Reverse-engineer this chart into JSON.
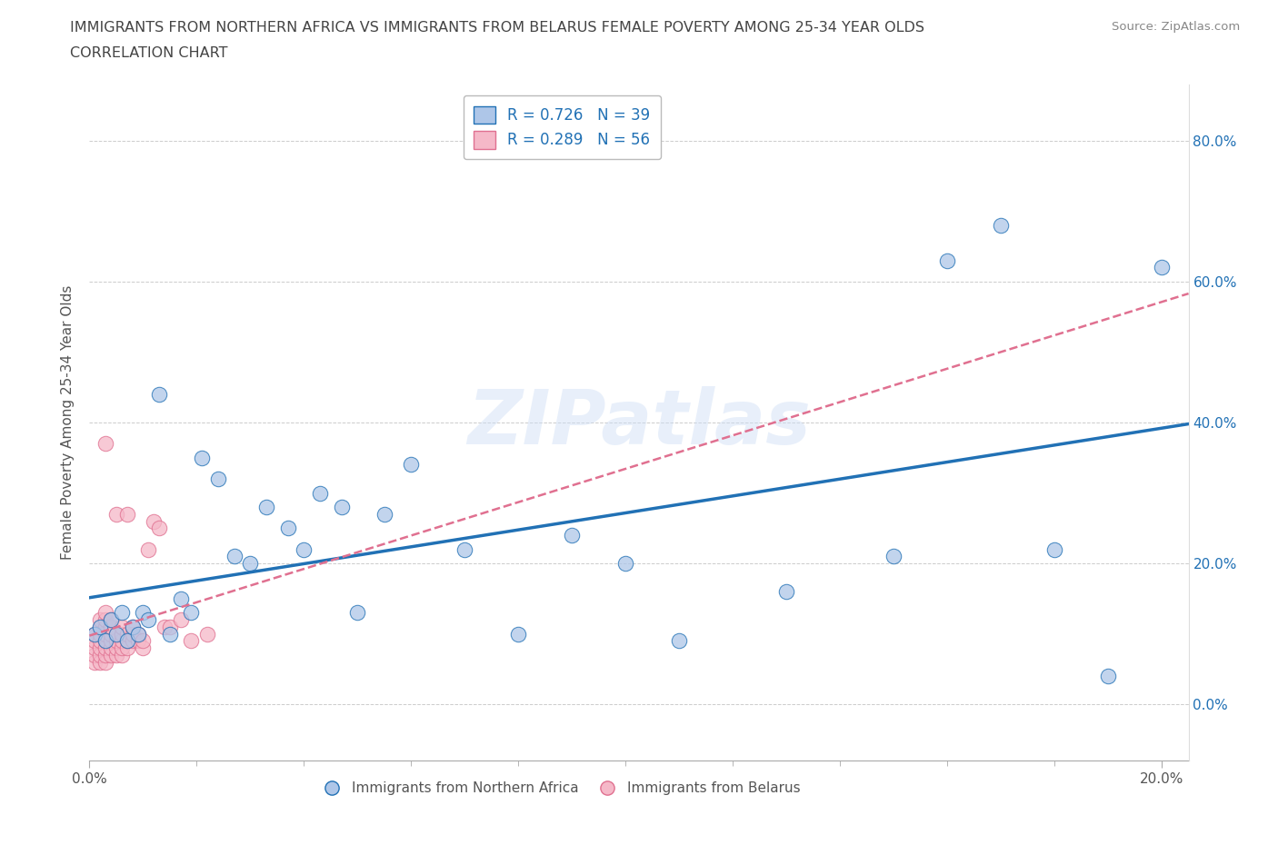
{
  "title_line1": "IMMIGRANTS FROM NORTHERN AFRICA VS IMMIGRANTS FROM BELARUS FEMALE POVERTY AMONG 25-34 YEAR OLDS",
  "title_line2": "CORRELATION CHART",
  "source": "Source: ZipAtlas.com",
  "ylabel": "Female Poverty Among 25-34 Year Olds",
  "xlim": [
    0.0,
    0.205
  ],
  "ylim": [
    -0.08,
    0.88
  ],
  "yticks": [
    0.0,
    0.2,
    0.4,
    0.6,
    0.8
  ],
  "xticks": [
    0.0,
    0.2
  ],
  "xtick_minors": [
    0.02,
    0.04,
    0.06,
    0.08,
    0.1,
    0.12,
    0.14,
    0.16,
    0.18
  ],
  "R_blue": 0.726,
  "N_blue": 39,
  "R_pink": 0.289,
  "N_pink": 56,
  "color_blue": "#aec6e8",
  "color_pink": "#f5b8c8",
  "line_blue": "#2171b5",
  "line_pink": "#e07090",
  "legend_color": "#2171b5",
  "title_color": "#555555",
  "blue_x": [
    0.001,
    0.002,
    0.003,
    0.004,
    0.005,
    0.006,
    0.007,
    0.008,
    0.009,
    0.01,
    0.011,
    0.013,
    0.015,
    0.017,
    0.019,
    0.021,
    0.024,
    0.027,
    0.03,
    0.033,
    0.037,
    0.04,
    0.043,
    0.047,
    0.05,
    0.055,
    0.06,
    0.07,
    0.08,
    0.09,
    0.1,
    0.11,
    0.13,
    0.15,
    0.16,
    0.17,
    0.18,
    0.19,
    0.2
  ],
  "blue_y": [
    0.1,
    0.11,
    0.09,
    0.12,
    0.1,
    0.13,
    0.09,
    0.11,
    0.1,
    0.13,
    0.12,
    0.44,
    0.1,
    0.15,
    0.13,
    0.35,
    0.32,
    0.21,
    0.2,
    0.28,
    0.25,
    0.22,
    0.3,
    0.28,
    0.13,
    0.27,
    0.34,
    0.22,
    0.1,
    0.24,
    0.2,
    0.09,
    0.16,
    0.21,
    0.63,
    0.68,
    0.22,
    0.04,
    0.62
  ],
  "pink_x": [
    0.001,
    0.001,
    0.001,
    0.001,
    0.001,
    0.002,
    0.002,
    0.002,
    0.002,
    0.002,
    0.002,
    0.002,
    0.003,
    0.003,
    0.003,
    0.003,
    0.003,
    0.003,
    0.003,
    0.003,
    0.003,
    0.004,
    0.004,
    0.004,
    0.004,
    0.004,
    0.004,
    0.005,
    0.005,
    0.005,
    0.005,
    0.005,
    0.006,
    0.006,
    0.006,
    0.006,
    0.006,
    0.007,
    0.007,
    0.007,
    0.007,
    0.008,
    0.008,
    0.008,
    0.009,
    0.009,
    0.01,
    0.01,
    0.011,
    0.012,
    0.013,
    0.014,
    0.015,
    0.017,
    0.019,
    0.022
  ],
  "pink_y": [
    0.06,
    0.07,
    0.08,
    0.09,
    0.1,
    0.06,
    0.07,
    0.08,
    0.09,
    0.1,
    0.11,
    0.12,
    0.06,
    0.07,
    0.08,
    0.09,
    0.1,
    0.11,
    0.12,
    0.13,
    0.37,
    0.07,
    0.08,
    0.09,
    0.1,
    0.11,
    0.12,
    0.07,
    0.08,
    0.09,
    0.1,
    0.27,
    0.07,
    0.08,
    0.09,
    0.1,
    0.11,
    0.08,
    0.09,
    0.1,
    0.27,
    0.09,
    0.1,
    0.11,
    0.09,
    0.1,
    0.08,
    0.09,
    0.22,
    0.26,
    0.25,
    0.11,
    0.11,
    0.12,
    0.09,
    0.1
  ],
  "watermark": "ZIPatlas",
  "background_color": "#ffffff",
  "grid_color": "#cccccc"
}
